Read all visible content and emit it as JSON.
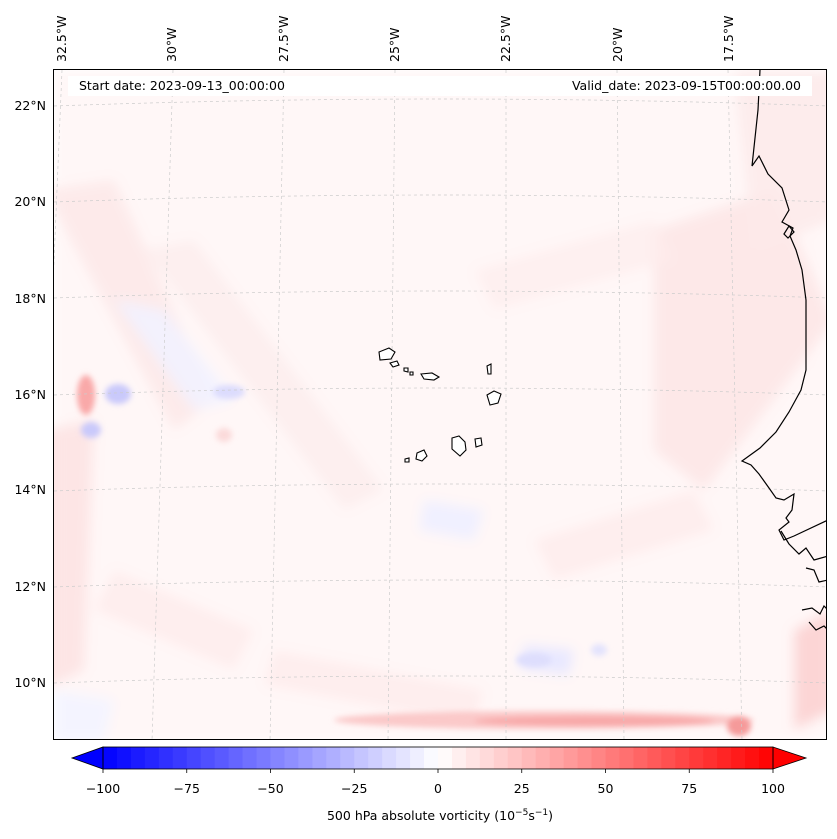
{
  "header": {
    "start_date": "Start date: 2023-09-13_00:00:00",
    "valid_date": "Valid_date: 2023-09-15T00:00:00.00"
  },
  "axes": {
    "lat_labels": [
      "22°N",
      "20°N",
      "18°N",
      "16°N",
      "14°N",
      "12°N",
      "10°N"
    ],
    "lon_labels": [
      "32.5°W",
      "30°W",
      "27.5°W",
      "25°W",
      "22.5°W",
      "20°W",
      "17.5°W"
    ]
  },
  "colorbar": {
    "ticks": [
      "−100",
      "−75",
      "−50",
      "−25",
      "0",
      "25",
      "50",
      "75",
      "100"
    ],
    "min": -100,
    "max": 100,
    "levels": 48,
    "label_main": "500 hPa absolute vorticity (10",
    "label_exp1": "−5",
    "label_mid": "s",
    "label_exp2": "−1",
    "label_end": ")",
    "colors": {
      "negative": "#0000ff",
      "neutral": "#ffffff",
      "positive": "#ff0000"
    }
  },
  "map": {
    "land_color": "#ffffff",
    "coastline_color": "#000000",
    "gridline_color": "#cccccc",
    "features": [
      "cape-verde-islands",
      "west-africa-coastline"
    ]
  }
}
